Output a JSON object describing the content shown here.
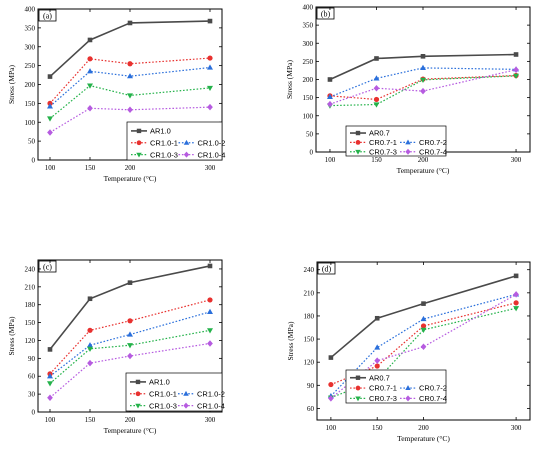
{
  "chart_data": [
    {
      "type": "line",
      "panel": "(a)",
      "xlabel": "Temperature (°C)",
      "ylabel": "Stress (MPa)",
      "x": [
        100,
        150,
        200,
        300
      ],
      "xlim": [
        85,
        315
      ],
      "ylim": [
        0,
        400
      ],
      "yticks": [
        0,
        50,
        100,
        150,
        200,
        250,
        300,
        350,
        400
      ],
      "series": [
        {
          "name": "AR1.0",
          "color": "#4a4a4a",
          "marker": "square",
          "dash": "solid",
          "values": [
            221,
            318,
            363,
            368
          ]
        },
        {
          "name": "CR1.0-1",
          "color": "#e8312f",
          "marker": "circle",
          "dash": "dotted",
          "values": [
            150,
            268,
            255,
            270
          ]
        },
        {
          "name": "CR1.0-2",
          "color": "#2a6fdb",
          "marker": "triangle-up",
          "dash": "dotted",
          "values": [
            142,
            235,
            222,
            245
          ]
        },
        {
          "name": "CR1.0-3",
          "color": "#24b24a",
          "marker": "triangle-down",
          "dash": "dotted",
          "values": [
            110,
            197,
            171,
            191
          ]
        },
        {
          "name": "CR1.0-4",
          "color": "#b65be0",
          "marker": "diamond",
          "dash": "dotted",
          "values": [
            73,
            137,
            133,
            140
          ]
        }
      ],
      "legend": "bottom-right"
    },
    {
      "type": "line",
      "panel": "(b)",
      "xlabel": "Temperature (°C)",
      "ylabel": "Stress (MPa)",
      "x": [
        100,
        150,
        200,
        300
      ],
      "xlim": [
        85,
        315
      ],
      "ylim": [
        0,
        400
      ],
      "yticks": [
        0,
        50,
        100,
        150,
        200,
        250,
        300,
        350,
        400
      ],
      "series": [
        {
          "name": "AR0.7",
          "color": "#4a4a4a",
          "marker": "square",
          "dash": "solid",
          "values": [
            200,
            258,
            264,
            269
          ]
        },
        {
          "name": "CR0.7-1",
          "color": "#e8312f",
          "marker": "circle",
          "dash": "dotted",
          "values": [
            155,
            145,
            201,
            211
          ]
        },
        {
          "name": "CR0.7-2",
          "color": "#2a6fdb",
          "marker": "triangle-up",
          "dash": "dotted",
          "values": [
            152,
            203,
            232,
            228
          ]
        },
        {
          "name": "CR0.7-3",
          "color": "#24b24a",
          "marker": "triangle-down",
          "dash": "dotted",
          "values": [
            128,
            131,
            199,
            210
          ]
        },
        {
          "name": "CR0.7-4",
          "color": "#b65be0",
          "marker": "diamond",
          "dash": "dotted",
          "values": [
            132,
            176,
            168,
            227
          ]
        }
      ],
      "legend": "bottom-right"
    },
    {
      "type": "line",
      "panel": "(c)",
      "xlabel": "Temperature (°C)",
      "ylabel": "Stress (MPa)",
      "x": [
        100,
        150,
        200,
        300
      ],
      "xlim": [
        85,
        315
      ],
      "ylim": [
        0,
        255
      ],
      "yticks": [
        0,
        30,
        60,
        90,
        120,
        150,
        180,
        210,
        240
      ],
      "series": [
        {
          "name": "AR1.0",
          "color": "#4a4a4a",
          "marker": "square",
          "dash": "solid",
          "values": [
            105,
            190,
            217,
            245
          ]
        },
        {
          "name": "CR1.0-1",
          "color": "#e8312f",
          "marker": "circle",
          "dash": "dotted",
          "values": [
            64,
            137,
            153,
            188
          ]
        },
        {
          "name": "CR1.0-2",
          "color": "#2a6fdb",
          "marker": "triangle-up",
          "dash": "dotted",
          "values": [
            60,
            112,
            130,
            168
          ]
        },
        {
          "name": "CR1.0-3",
          "color": "#24b24a",
          "marker": "triangle-down",
          "dash": "dotted",
          "values": [
            48,
            106,
            112,
            137
          ]
        },
        {
          "name": "CR1.0-4",
          "color": "#b65be0",
          "marker": "diamond",
          "dash": "dotted",
          "values": [
            24,
            82,
            94,
            115
          ]
        }
      ],
      "legend": "bottom-right"
    },
    {
      "type": "line",
      "panel": "(d)",
      "xlabel": "Temperature (°C)",
      "ylabel": "Stress (MPa)",
      "x": [
        100,
        150,
        200,
        300
      ],
      "xlim": [
        85,
        315
      ],
      "ylim": [
        45,
        250
      ],
      "yticks": [
        60,
        90,
        120,
        150,
        180,
        210,
        240
      ],
      "series": [
        {
          "name": "AR0.7",
          "color": "#4a4a4a",
          "marker": "square",
          "dash": "solid",
          "values": [
            126,
            177,
            196,
            232
          ]
        },
        {
          "name": "CR0.7-1",
          "color": "#e8312f",
          "marker": "circle",
          "dash": "dotted",
          "values": [
            91,
            115,
            167,
            197
          ]
        },
        {
          "name": "CR0.7-2",
          "color": "#2a6fdb",
          "marker": "triangle-up",
          "dash": "dotted",
          "values": [
            76,
            139,
            176,
            208
          ]
        },
        {
          "name": "CR0.7-3",
          "color": "#24b24a",
          "marker": "triangle-down",
          "dash": "dotted",
          "values": [
            74,
            97,
            162,
            190
          ]
        },
        {
          "name": "CR0.7-4",
          "color": "#b65be0",
          "marker": "diamond",
          "dash": "dotted",
          "values": [
            73,
            122,
            140,
            208
          ]
        }
      ],
      "legend": "bottom-right"
    }
  ]
}
